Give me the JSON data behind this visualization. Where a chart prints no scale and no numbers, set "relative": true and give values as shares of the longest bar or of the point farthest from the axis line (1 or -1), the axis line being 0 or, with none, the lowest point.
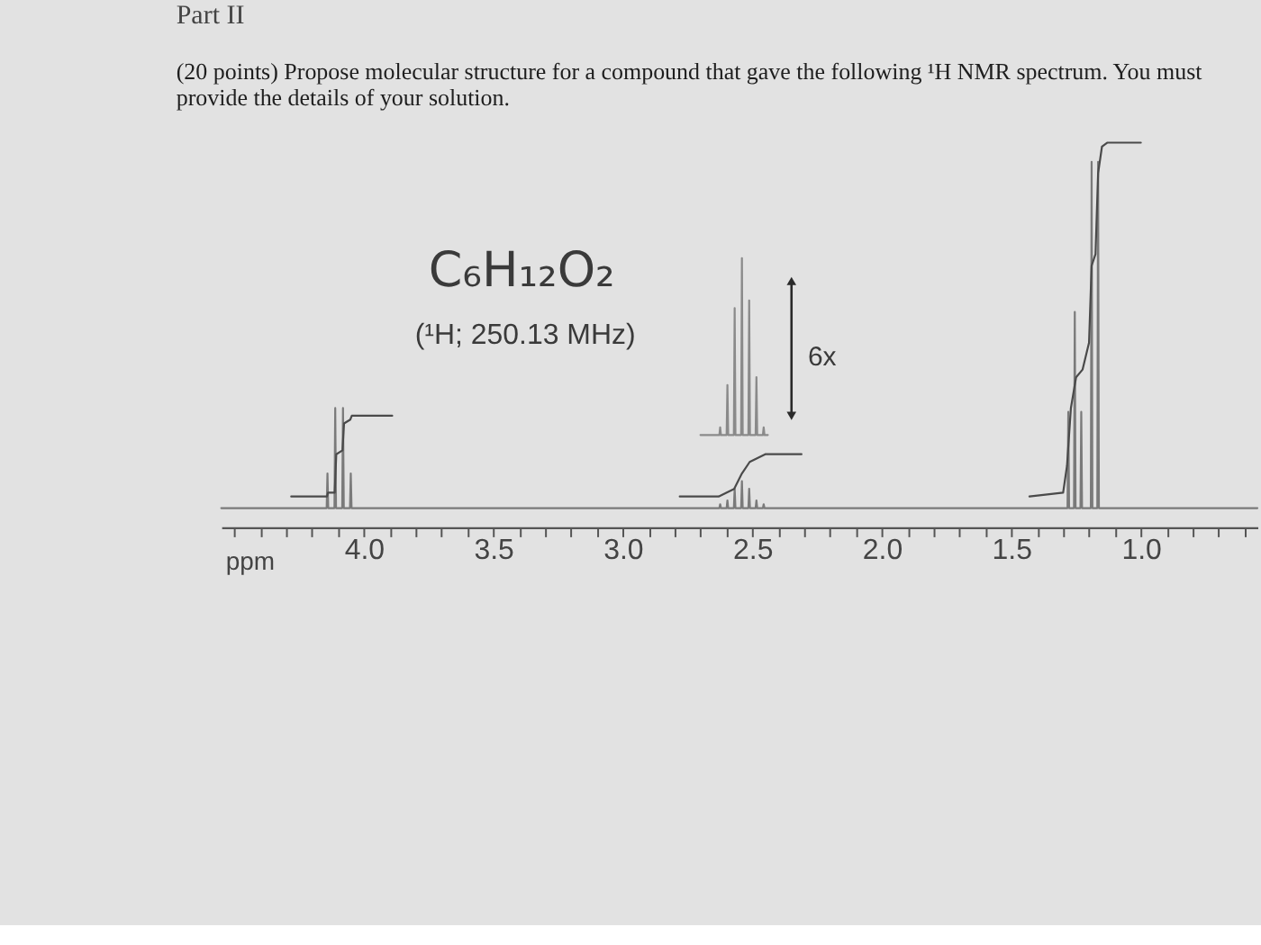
{
  "chart_data": {
    "type": "line",
    "title": "Part II",
    "subtitle": "(20 points) Propose molecular structure for a compound that gave the following ¹H NMR spectrum. You must provide the details of your solution.",
    "xlabel": "ppm",
    "annotations": [
      "C₆H₁₂O₂",
      "(¹H; 250.13 MHz)",
      "6x"
    ],
    "relative": true,
    "xlim": [
      4.55,
      0.55
    ],
    "xticks": [
      {
        "value": 4.5,
        "label": null
      },
      {
        "value": 4.4,
        "label": null
      },
      {
        "value": 4.3,
        "label": null
      },
      {
        "value": 4.2,
        "label": null
      },
      {
        "value": 4.1,
        "label": null
      },
      {
        "value": 4,
        "label": "4.0"
      },
      {
        "value": 3.9,
        "label": null
      },
      {
        "value": 3.8,
        "label": null
      },
      {
        "value": 3.7,
        "label": null
      },
      {
        "value": 3.6,
        "label": null
      },
      3.5,
      {
        "value": 3.4,
        "label": null
      },
      {
        "value": 3.3,
        "label": null
      },
      {
        "value": 3.2,
        "label": null
      },
      {
        "value": 3.1,
        "label": null
      },
      {
        "value": 3,
        "label": "3.0"
      },
      {
        "value": 2.9,
        "label": null
      },
      {
        "value": 2.8,
        "label": null
      },
      {
        "value": 2.7,
        "label": null
      },
      {
        "value": 2.6,
        "label": null
      },
      2.5,
      {
        "value": 2.4,
        "label": null
      },
      {
        "value": 2.3,
        "label": null
      },
      {
        "value": 2.2,
        "label": null
      },
      {
        "value": 2.1,
        "label": null
      },
      {
        "value": 2,
        "label": "2.0"
      },
      {
        "value": 1.9,
        "label": null
      },
      {
        "value": 1.8,
        "label": null
      },
      {
        "value": 1.7,
        "label": null
      },
      {
        "value": 1.6,
        "label": null
      },
      1.5,
      {
        "value": 1.4,
        "label": null
      },
      {
        "value": 1.3,
        "label": null
      },
      {
        "value": 1.2,
        "label": null
      },
      {
        "value": 1.1,
        "label": null
      },
      {
        "value": 1,
        "label": "1.0"
      },
      {
        "value": 0.9,
        "label": null
      },
      {
        "value": 0.8,
        "label": null
      },
      {
        "value": 0.7,
        "label": null
      },
      {
        "value": 0.6,
        "label": null
      }
    ],
    "series": [
      {
        "color": "#7a7a7a",
        "x": [
          4.55,
          4.143,
          4.14,
          4.137,
          4.113,
          4.11,
          4.107,
          4.083,
          4.08,
          4.077,
          4.053,
          4.05,
          4.047,
          2.627,
          2.624,
          2.621,
          2.599,
          2.596,
          2.593,
          2.571,
          2.568,
          2.565,
          2.543,
          2.54,
          2.537,
          2.515,
          2.512,
          2.509,
          2.487,
          2.484,
          2.481,
          2.459,
          2.456,
          2.453,
          1.283,
          1.28,
          1.277,
          1.258,
          1.255,
          1.252,
          1.233,
          1.23,
          1.227,
          1.193,
          1.19,
          1.187,
          1.168,
          1.165,
          1.162,
          0.55
        ],
        "values": [
          0.05,
          0.05,
          0.14,
          0.05,
          0.05,
          0.31,
          0.05,
          0.05,
          0.31,
          0.05,
          0.05,
          0.14,
          0.05,
          0.05,
          0.06,
          0.05,
          0.05,
          0.07,
          0.05,
          0.05,
          0.1,
          0.05,
          0.05,
          0.12,
          0.05,
          0.05,
          0.1,
          0.05,
          0.05,
          0.07,
          0.05,
          0.05,
          0.06,
          0.05,
          0.05,
          0.3,
          0.05,
          0.05,
          0.56,
          0.05,
          0.05,
          0.3,
          0.05,
          0.05,
          0.95,
          0.05,
          0.05,
          0.95,
          0.05,
          0.05
        ]
      },
      {
        "color": "#8a8a8a",
        "x": [
          2.7,
          2.627,
          2.624,
          2.621,
          2.599,
          2.596,
          2.593,
          2.571,
          2.568,
          2.565,
          2.543,
          2.54,
          2.537,
          2.515,
          2.512,
          2.509,
          2.487,
          2.484,
          2.481,
          2.459,
          2.456,
          2.453,
          2.44
        ],
        "values": [
          0.24,
          0.24,
          0.26,
          0.24,
          0.24,
          0.37,
          0.24,
          0.24,
          0.57,
          0.24,
          0.24,
          0.7,
          0.24,
          0.24,
          0.59,
          0.24,
          0.24,
          0.39,
          0.24,
          0.24,
          0.26,
          0.24,
          0.24
        ]
      },
      {
        "color": "#4a4a4a",
        "x": [
          4.28,
          4.142,
          4.138,
          4.112,
          4.106,
          4.082,
          4.076,
          4.052,
          4.046,
          3.89
        ],
        "values": [
          0.08,
          0.08,
          0.09,
          0.09,
          0.19,
          0.2,
          0.27,
          0.28,
          0.29,
          0.29
        ]
      },
      {
        "color": "#4a4a4a",
        "x": [
          2.78,
          2.63,
          2.6,
          2.57,
          2.54,
          2.51,
          2.48,
          2.45,
          2.31
        ],
        "values": [
          0.08,
          0.08,
          0.09,
          0.1,
          0.14,
          0.17,
          0.18,
          0.19,
          0.19
        ]
      },
      {
        "color": "#4a4a4a",
        "x": [
          1.43,
          1.3,
          1.285,
          1.27,
          1.25,
          1.225,
          1.2,
          1.19,
          1.175,
          1.165,
          1.15,
          1.13,
          1.0
        ],
        "values": [
          0.08,
          0.09,
          0.16,
          0.31,
          0.39,
          0.41,
          0.48,
          0.68,
          0.71,
          0.92,
          0.99,
          1.0,
          1.0
        ]
      }
    ]
  }
}
